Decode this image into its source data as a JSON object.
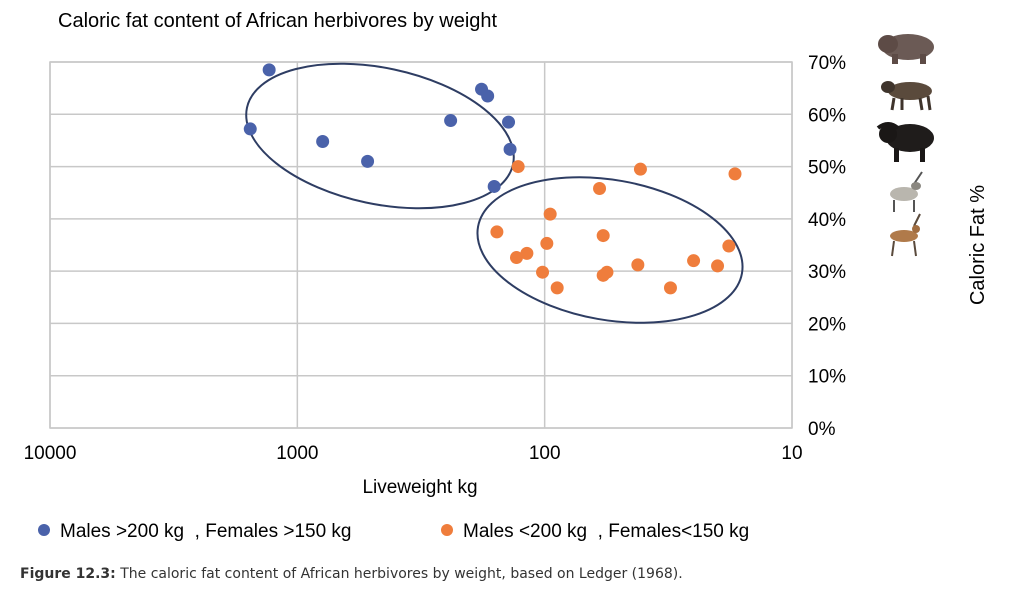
{
  "chart_data": {
    "type": "scatter",
    "title": "Caloric fat content of African herbivores by weight",
    "xlabel": "Liveweight kg",
    "ylabel": "Caloric Fat %",
    "x_scale": "log-reversed",
    "xlim": [
      10000,
      10
    ],
    "ylim": [
      0,
      70
    ],
    "x_ticks": [
      "10000",
      "1000",
      "100",
      "10"
    ],
    "y_ticks": [
      "0%",
      "10%",
      "20%",
      "30%",
      "40%",
      "50%",
      "60%",
      "70%"
    ],
    "grid": true,
    "legend_position": "bottom",
    "series": [
      {
        "name": "Males >200 kg  , Females >150 kg",
        "color": "#4a62aa",
        "points": [
          [
            1300,
            68.5
          ],
          [
            1550,
            57.2
          ],
          [
            790,
            54.8
          ],
          [
            520,
            51.0
          ],
          [
            240,
            58.8
          ],
          [
            180,
            64.8
          ],
          [
            170,
            63.5
          ],
          [
            140,
            58.5
          ],
          [
            138,
            53.3
          ],
          [
            160,
            46.2
          ]
        ]
      },
      {
        "name": "Males <200 kg  , Females<150 kg",
        "color": "#ef7d3c",
        "points": [
          [
            128,
            50.0
          ],
          [
            156,
            37.5
          ],
          [
            118,
            33.4
          ],
          [
            130,
            32.6
          ],
          [
            102,
            29.8
          ],
          [
            98,
            35.3
          ],
          [
            95,
            40.9
          ],
          [
            89,
            26.8
          ],
          [
            60,
            45.8
          ],
          [
            58,
            36.8
          ],
          [
            58,
            29.2
          ],
          [
            56,
            29.8
          ],
          [
            41,
            49.5
          ],
          [
            42,
            31.2
          ],
          [
            31,
            26.8
          ],
          [
            25,
            32.0
          ],
          [
            20,
            31.0
          ],
          [
            18,
            34.8
          ],
          [
            17,
            48.6
          ]
        ]
      }
    ]
  },
  "icons": [
    "hippo-icon",
    "wildebeest-icon",
    "buffalo-icon",
    "oryx-icon",
    "gazelle-icon"
  ],
  "caption": {
    "label": "Figure 12.3:",
    "text": " The caloric fat content of African herbivores by weight, based on Ledger (1968)."
  }
}
